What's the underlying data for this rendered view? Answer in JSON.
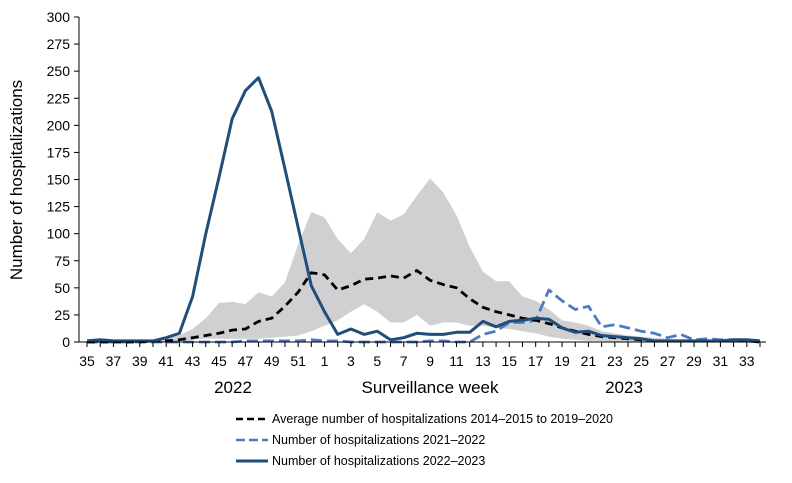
{
  "chart_data": {
    "type": "line",
    "ylabel": "Number of hospitalizations",
    "xlabel": "Surveillance week",
    "ylim": [
      0,
      300
    ],
    "yticks": [
      0,
      25,
      50,
      75,
      100,
      125,
      150,
      175,
      200,
      225,
      250,
      275,
      300
    ],
    "year_labels": [
      "2022",
      "2023"
    ],
    "x_weeks": [
      35,
      36,
      37,
      38,
      39,
      40,
      41,
      42,
      43,
      44,
      45,
      46,
      47,
      48,
      49,
      50,
      51,
      52,
      1,
      2,
      3,
      4,
      5,
      6,
      7,
      8,
      9,
      10,
      11,
      12,
      13,
      14,
      15,
      16,
      17,
      18,
      19,
      20,
      21,
      22,
      23,
      24,
      25,
      26,
      27,
      28,
      29,
      30,
      31,
      32,
      33,
      34
    ],
    "x_tick_labels": [
      "35",
      "37",
      "39",
      "41",
      "43",
      "45",
      "47",
      "49",
      "51",
      "1",
      "3",
      "5",
      "7",
      "9",
      "11",
      "13",
      "15",
      "17",
      "19",
      "21",
      "23",
      "25",
      "27",
      "29",
      "31",
      "33"
    ],
    "range_band": {
      "name": "Range 2014-2015 to 2019-2020",
      "color": "#d0d0d2",
      "min": [
        0,
        0,
        0,
        0,
        0,
        0,
        0,
        1,
        2,
        3,
        3,
        3,
        3,
        3,
        4,
        5,
        6,
        10,
        15,
        20,
        28,
        35,
        28,
        18,
        18,
        25,
        15,
        18,
        18,
        15,
        15,
        13,
        12,
        10,
        8,
        5,
        3,
        2,
        1,
        1,
        0,
        0,
        0,
        0,
        0,
        0,
        0,
        0,
        0,
        0,
        0,
        0
      ],
      "max": [
        2,
        2,
        2,
        2,
        2,
        2,
        3,
        6,
        12,
        22,
        36,
        37,
        35,
        46,
        42,
        55,
        90,
        120,
        115,
        95,
        82,
        95,
        120,
        112,
        118,
        135,
        151,
        138,
        117,
        88,
        65,
        56,
        56,
        42,
        38,
        30,
        20,
        18,
        15,
        10,
        8,
        6,
        5,
        4,
        3,
        2,
        2,
        2,
        2,
        2,
        2,
        2
      ]
    },
    "series": [
      {
        "name": "Average number of hospitalizations 2014–2015 to 2019–2020",
        "color": "#000000",
        "style": "dashed",
        "values": [
          0,
          0,
          0,
          0,
          0,
          1,
          1,
          2,
          4,
          6,
          8,
          11,
          12,
          19,
          22,
          33,
          46,
          64,
          62,
          48,
          52,
          58,
          59,
          61,
          59,
          66,
          57,
          53,
          50,
          40,
          32,
          28,
          25,
          22,
          20,
          17,
          13,
          10,
          7,
          5,
          4,
          3,
          2,
          1,
          1,
          1,
          1,
          1,
          1,
          1,
          1,
          0
        ]
      },
      {
        "name": "Number of hospitalizations 2021–2022",
        "color": "#4e79c4",
        "style": "dashed",
        "values": [
          0,
          0,
          0,
          0,
          0,
          0,
          0,
          0,
          0,
          0,
          0,
          0,
          1,
          1,
          1,
          1,
          1,
          2,
          1,
          1,
          0,
          0,
          0,
          0,
          0,
          0,
          1,
          1,
          0,
          0,
          7,
          10,
          18,
          18,
          20,
          48,
          38,
          30,
          33,
          14,
          16,
          13,
          10,
          8,
          4,
          7,
          2,
          3,
          2,
          2,
          1,
          1
        ]
      },
      {
        "name": "Number of hospitalizations 2022–2023",
        "color": "#1f4e79",
        "style": "solid",
        "values": [
          1,
          2,
          1,
          1,
          1,
          1,
          4,
          8,
          42,
          100,
          152,
          206,
          232,
          244,
          213,
          160,
          106,
          52,
          28,
          7,
          12,
          7,
          10,
          2,
          4,
          8,
          7,
          7,
          9,
          9,
          19,
          14,
          19,
          20,
          22,
          21,
          13,
          9,
          10,
          6,
          5,
          4,
          3,
          1,
          1,
          1,
          1,
          1,
          1,
          2,
          2,
          1
        ]
      }
    ]
  }
}
